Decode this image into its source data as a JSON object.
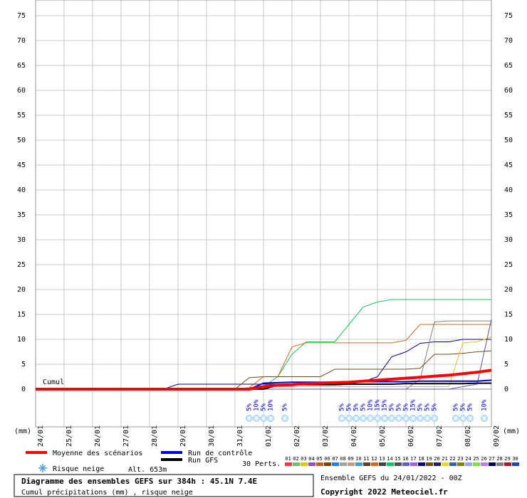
{
  "chart_data": {
    "type": "line",
    "title": "Diagramme des ensembles GEFS sur 384h : 45.1N 7.4E",
    "subtitle": "Cumul précipitations (mm) , risque neige",
    "run_info": "Ensemble GEFS du 24/01/2022 - 00Z",
    "copyright": "Copyright 2022 Meteociel.fr",
    "annotation": "Cumul",
    "y_unit": "(mm)",
    "snow_label": "Risque neige",
    "altitude": "Alt. 653m",
    "perts_label": "30 Perts.",
    "xlim": [
      0,
      384
    ],
    "xticks": [
      {
        "value": 0,
        "label": "24/01"
      },
      {
        "value": 24,
        "label": "25/01"
      },
      {
        "value": 48,
        "label": "26/01"
      },
      {
        "value": 72,
        "label": "27/01"
      },
      {
        "value": 96,
        "label": "28/01"
      },
      {
        "value": 120,
        "label": "29/01"
      },
      {
        "value": 144,
        "label": "30/01"
      },
      {
        "value": 168,
        "label": "31/01"
      },
      {
        "value": 192,
        "label": "01/02"
      },
      {
        "value": 216,
        "label": "02/02"
      },
      {
        "value": 240,
        "label": "03/02"
      },
      {
        "value": 264,
        "label": "04/02"
      },
      {
        "value": 288,
        "label": "05/02"
      },
      {
        "value": 312,
        "label": "06/02"
      },
      {
        "value": 336,
        "label": "07/02"
      },
      {
        "value": 360,
        "label": "08/02"
      },
      {
        "value": 384,
        "label": "09/02"
      }
    ],
    "ylim": [
      0,
      75
    ],
    "yticks": [
      0,
      5,
      10,
      15,
      20,
      25,
      30,
      35,
      40,
      45,
      50,
      55,
      60,
      65,
      70,
      75
    ],
    "grid": true,
    "x": [
      0,
      12,
      24,
      36,
      48,
      60,
      72,
      84,
      96,
      108,
      120,
      132,
      144,
      156,
      168,
      180,
      192,
      204,
      216,
      228,
      240,
      252,
      264,
      276,
      288,
      300,
      312,
      324,
      336,
      348,
      360,
      372,
      384
    ],
    "series": [
      {
        "color": "#20c060",
        "values": [
          0,
          0,
          0,
          0,
          0,
          0,
          0,
          0,
          0,
          0,
          0,
          0,
          0,
          0,
          0,
          0.3,
          0.5,
          2.5,
          7,
          9.5,
          9.5,
          9.5,
          13,
          16.5,
          17.5,
          18,
          18,
          18,
          18,
          18,
          18,
          18,
          18
        ]
      },
      {
        "color": "#d06a20",
        "values": [
          0,
          0,
          0,
          0,
          0,
          0,
          0,
          0,
          0,
          0,
          0,
          0,
          0,
          0,
          0,
          0.3,
          2.5,
          2.5,
          8.5,
          9.3,
          9.3,
          9.3,
          9.3,
          9.3,
          9.3,
          9.3,
          9.8,
          13,
          13,
          13,
          13,
          13,
          13
        ]
      },
      {
        "color": "#000080",
        "values": [
          0,
          0,
          0,
          0,
          0,
          0,
          0,
          0,
          0,
          0,
          1,
          1,
          1,
          1,
          1,
          1,
          1,
          1,
          1,
          1,
          1,
          1,
          1,
          1.5,
          2.5,
          6.5,
          7.5,
          9.2,
          9.5,
          9.5,
          10,
          10,
          10
        ]
      },
      {
        "color": "#808080",
        "values": [
          0,
          0,
          0,
          0,
          0,
          0,
          0,
          0,
          0,
          0,
          0,
          0,
          0,
          0,
          0,
          0,
          0,
          0,
          0,
          0,
          0,
          0,
          0,
          0,
          0,
          0,
          0,
          2,
          13.5,
          13.7,
          13.7,
          13.7,
          13.7
        ]
      },
      {
        "color": "#7a4a10",
        "values": [
          0,
          0,
          0,
          0,
          0,
          0,
          0,
          0,
          0,
          0,
          0,
          0,
          0,
          0,
          0,
          2.3,
          2.5,
          2.5,
          2.5,
          2.5,
          2.5,
          4,
          4,
          4,
          4,
          4,
          4,
          4.2,
          7,
          7,
          7.2,
          7.5,
          7.7
        ]
      },
      {
        "color": "#e0c020",
        "values": [
          0,
          0,
          0,
          0,
          0,
          0,
          0,
          0,
          0,
          0,
          0,
          0,
          0,
          0,
          0,
          0,
          0.5,
          0.5,
          0.5,
          0.5,
          0.5,
          0.5,
          0.5,
          0.5,
          0.5,
          0.5,
          0.5,
          0.5,
          0.5,
          0.5,
          9.3,
          9.5,
          10.5
        ]
      },
      {
        "color": "#6050a0",
        "values": [
          0,
          0,
          0,
          0,
          0,
          0,
          0,
          0,
          0,
          0,
          0,
          0,
          0,
          0,
          0,
          0,
          0,
          0,
          0,
          0,
          0,
          0,
          0,
          0,
          0,
          0,
          0,
          0,
          0,
          0,
          0.5,
          1,
          14
        ]
      },
      {
        "name": "Run GFS",
        "color": "#000000",
        "values": [
          0,
          0,
          0,
          0,
          0,
          0,
          0,
          0,
          0,
          0,
          0,
          0,
          0,
          0,
          0,
          0,
          0,
          0.8,
          0.9,
          0.9,
          0.9,
          0.9,
          1,
          1,
          1,
          1,
          1.1,
          1.1,
          1.1,
          1.1,
          1.1,
          1.2,
          1.2
        ]
      },
      {
        "name": "Run de contrôle",
        "color": "#0000e0",
        "values": [
          0,
          0,
          0,
          0,
          0,
          0,
          0,
          0,
          0,
          0,
          0,
          0,
          0,
          0,
          0,
          0,
          1.2,
          1.3,
          1.4,
          1.4,
          1.4,
          1.4,
          1.5,
          1.5,
          1.5,
          1.5,
          1.5,
          1.6,
          1.6,
          1.6,
          1.6,
          1.6,
          1.8
        ]
      },
      {
        "name": "Moyenne des scénarios",
        "color": "#ff0000",
        "values": [
          0,
          0,
          0,
          0,
          0,
          0,
          0,
          0,
          0,
          0,
          0,
          0,
          0,
          0,
          0,
          0,
          0.5,
          0.8,
          0.9,
          1.1,
          1.2,
          1.3,
          1.4,
          1.6,
          1.8,
          2,
          2.2,
          2.4,
          2.6,
          2.8,
          3.1,
          3.4,
          3.8
        ]
      }
    ],
    "snow_risk": {
      "x": [
        180,
        186,
        192,
        198,
        210,
        258,
        264,
        270,
        276,
        282,
        288,
        294,
        300,
        306,
        312,
        318,
        324,
        330,
        336,
        354,
        360,
        366,
        378
      ],
      "values": [
        5,
        10,
        5,
        10,
        5,
        5,
        5,
        5,
        5,
        10,
        15,
        15,
        5,
        5,
        5,
        15,
        5,
        5,
        5,
        5,
        5,
        5,
        10
      ],
      "value_labels": [
        "5%",
        "10%",
        "5%",
        "10%",
        "5%",
        "5%",
        "5%",
        "5%",
        "5%",
        "10%",
        "15%",
        "15%",
        "5%",
        "5%",
        "5%",
        "15%",
        "5%",
        "5%",
        "5%",
        "5%",
        "5%",
        "5%",
        "10%"
      ]
    },
    "pert_legend": [
      {
        "label": "01",
        "color": "#e04040"
      },
      {
        "label": "02",
        "color": "#70c070"
      },
      {
        "label": "03",
        "color": "#e0c020"
      },
      {
        "label": "04",
        "color": "#9050c0"
      },
      {
        "label": "05",
        "color": "#c06020"
      },
      {
        "label": "06",
        "color": "#804000"
      },
      {
        "label": "07",
        "color": "#2080e0"
      },
      {
        "label": "08",
        "color": "#a0a0a0"
      },
      {
        "label": "09",
        "color": "#c0a080"
      },
      {
        "label": "10",
        "color": "#40a0c0"
      },
      {
        "label": "11",
        "color": "#604020"
      },
      {
        "label": "12",
        "color": "#d06a20"
      },
      {
        "label": "13",
        "color": "#404040"
      },
      {
        "label": "14",
        "color": "#20c060"
      },
      {
        "label": "15",
        "color": "#505050"
      },
      {
        "label": "16",
        "color": "#6060c0"
      },
      {
        "label": "17",
        "color": "#a060e0"
      },
      {
        "label": "18",
        "color": "#000080"
      },
      {
        "label": "19",
        "color": "#7a4a10"
      },
      {
        "label": "20",
        "color": "#202060"
      },
      {
        "label": "21",
        "color": "#e0e020"
      },
      {
        "label": "22",
        "color": "#3060c0"
      },
      {
        "label": "23",
        "color": "#808000"
      },
      {
        "label": "24",
        "color": "#a0a0ff"
      },
      {
        "label": "25",
        "color": "#80e040"
      },
      {
        "label": "26",
        "color": "#c080e0"
      },
      {
        "label": "27",
        "color": "#000060"
      },
      {
        "label": "28",
        "color": "#808080"
      },
      {
        "label": "29",
        "color": "#a02020"
      },
      {
        "label": "30",
        "color": "#2040c0"
      }
    ]
  }
}
